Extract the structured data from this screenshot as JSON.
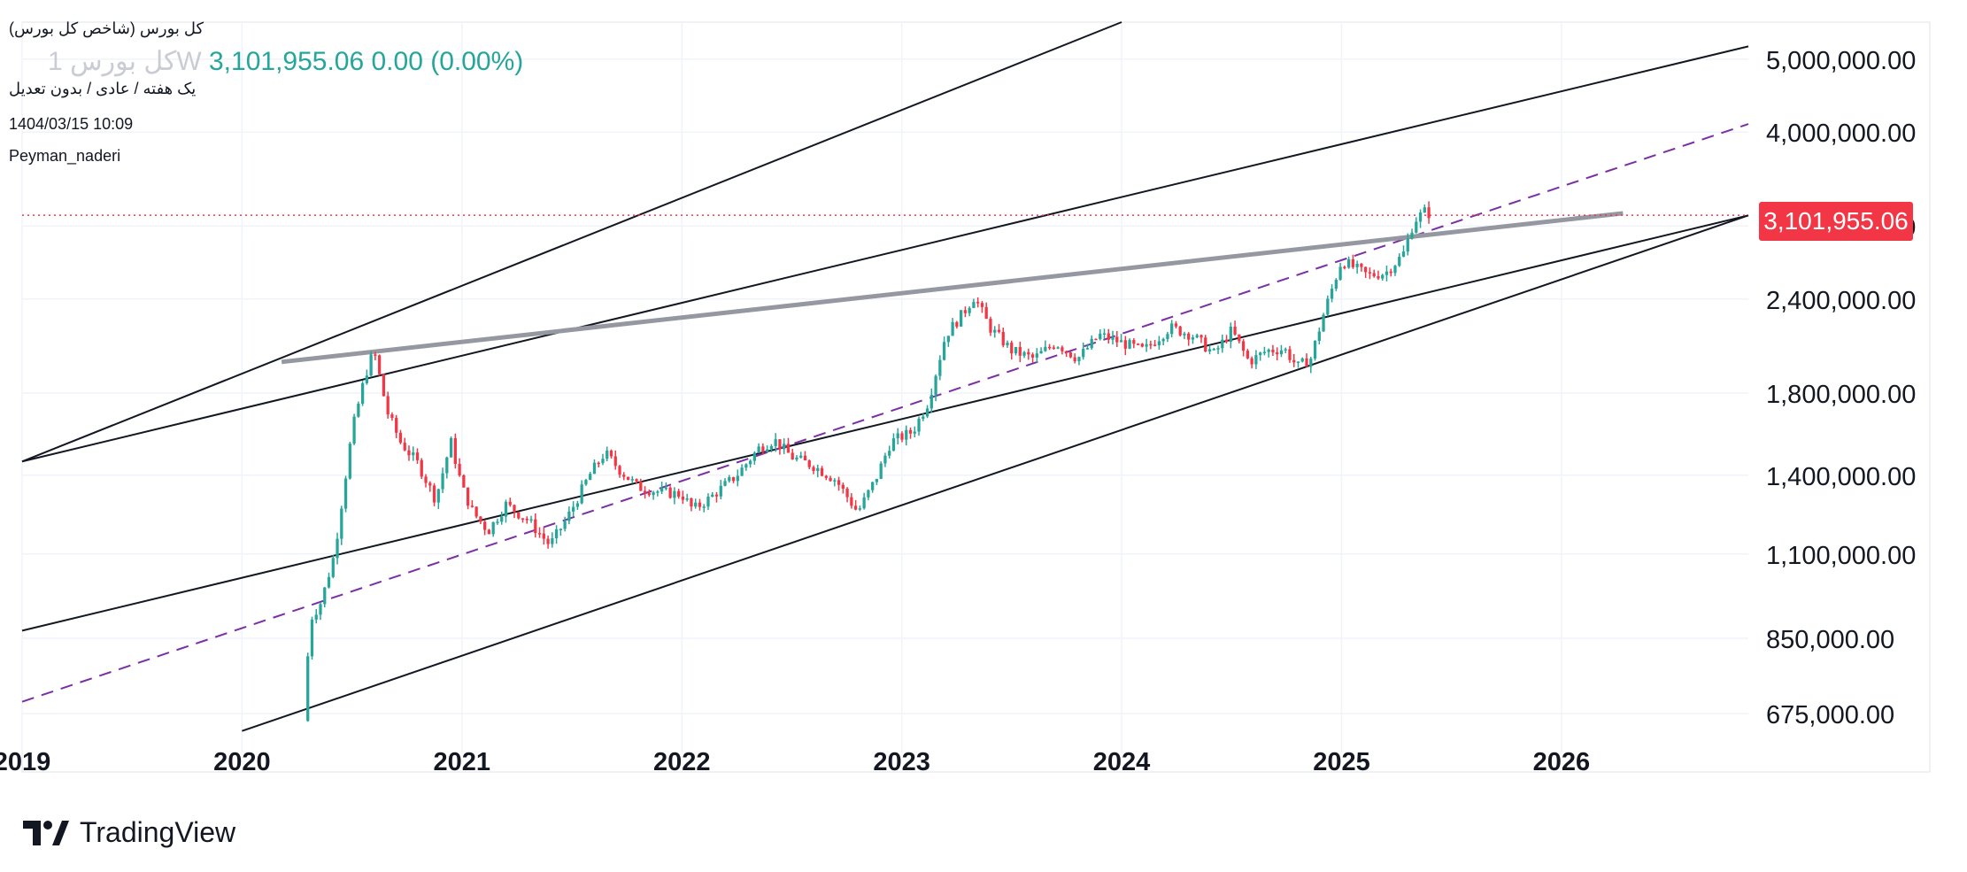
{
  "legend": {
    "symbol_title": "کل بورس (شاخص کل بورس)",
    "price_line_ghost": "کل بورس 1W",
    "price_line_value": "3,101,955.06  0.00 (0.00%)",
    "interval_desc": "یک هفته / عادی / بدون تعدیل",
    "datetime": "1404/03/15 10:09",
    "author": "Peyman_naderi"
  },
  "last_price_label": "3,101,955.06",
  "brand": {
    "name": "TradingView"
  },
  "colors": {
    "up": "#26a69a",
    "down": "#f23645",
    "grid": "#f0f3fa",
    "channel": "#131722",
    "median": "#7b2fa5",
    "trend": "#9598a1"
  },
  "chart_data": {
    "type": "candlestick",
    "scale": "log",
    "last_price": 3101955.06,
    "ylim": [
      650000,
      5600000
    ],
    "y_ticks": [
      {
        "value": 675000,
        "label": "675,000.00"
      },
      {
        "value": 850000,
        "label": "850,000.00"
      },
      {
        "value": 1100000,
        "label": "1,100,000.00"
      },
      {
        "value": 1400000,
        "label": "1,400,000.00"
      },
      {
        "value": 1800000,
        "label": "1,800,000.00"
      },
      {
        "value": 2400000,
        "label": "2,400,000.00"
      },
      {
        "value": 3000000,
        "label": "3,000,000.00"
      },
      {
        "value": 4000000,
        "label": "4,000,000.00"
      },
      {
        "value": 5000000,
        "label": "5,000,000.00"
      }
    ],
    "x_ticks": [
      "2019",
      "2020",
      "2021",
      "2022",
      "2023",
      "2024",
      "2025",
      "2026"
    ],
    "xlim": [
      2019.0,
      2026.85
    ],
    "close_path": [
      [
        2020.28,
        660000
      ],
      [
        2020.31,
        900000
      ],
      [
        2020.36,
        950000
      ],
      [
        2020.42,
        1100000
      ],
      [
        2020.5,
        1600000
      ],
      [
        2020.56,
        1900000
      ],
      [
        2020.6,
        2050000
      ],
      [
        2020.66,
        1700000
      ],
      [
        2020.72,
        1550000
      ],
      [
        2020.8,
        1450000
      ],
      [
        2020.88,
        1300000
      ],
      [
        2020.95,
        1550000
      ],
      [
        2021.0,
        1350000
      ],
      [
        2021.05,
        1250000
      ],
      [
        2021.12,
        1180000
      ],
      [
        2021.2,
        1280000
      ],
      [
        2021.3,
        1220000
      ],
      [
        2021.4,
        1130000
      ],
      [
        2021.48,
        1230000
      ],
      [
        2021.58,
        1400000
      ],
      [
        2021.65,
        1500000
      ],
      [
        2021.72,
        1420000
      ],
      [
        2021.8,
        1350000
      ],
      [
        2021.9,
        1330000
      ],
      [
        2022.0,
        1320000
      ],
      [
        2022.05,
        1260000
      ],
      [
        2022.12,
        1300000
      ],
      [
        2022.25,
        1400000
      ],
      [
        2022.35,
        1520000
      ],
      [
        2022.42,
        1560000
      ],
      [
        2022.5,
        1480000
      ],
      [
        2022.6,
        1440000
      ],
      [
        2022.7,
        1380000
      ],
      [
        2022.8,
        1250000
      ],
      [
        2022.88,
        1380000
      ],
      [
        2022.95,
        1550000
      ],
      [
        2023.05,
        1600000
      ],
      [
        2023.12,
        1750000
      ],
      [
        2023.2,
        2150000
      ],
      [
        2023.28,
        2300000
      ],
      [
        2023.33,
        2420000
      ],
      [
        2023.4,
        2200000
      ],
      [
        2023.5,
        2050000
      ],
      [
        2023.6,
        2000000
      ],
      [
        2023.7,
        2100000
      ],
      [
        2023.8,
        2000000
      ],
      [
        2023.9,
        2150000
      ],
      [
        2024.0,
        2100000
      ],
      [
        2024.1,
        2050000
      ],
      [
        2024.22,
        2200000
      ],
      [
        2024.32,
        2150000
      ],
      [
        2024.42,
        2030000
      ],
      [
        2024.5,
        2180000
      ],
      [
        2024.58,
        1980000
      ],
      [
        2024.66,
        2050000
      ],
      [
        2024.74,
        2060000
      ],
      [
        2024.8,
        1950000
      ],
      [
        2024.86,
        2000000
      ],
      [
        2024.92,
        2300000
      ],
      [
        2025.0,
        2700000
      ],
      [
        2025.05,
        2650000
      ],
      [
        2025.12,
        2580000
      ],
      [
        2025.2,
        2600000
      ],
      [
        2025.28,
        2750000
      ],
      [
        2025.33,
        3050000
      ],
      [
        2025.38,
        3140000
      ],
      [
        2025.41,
        3101955.06
      ]
    ],
    "drawings": [
      {
        "kind": "channel_upper",
        "from": [
          2019.0,
          1460000
        ],
        "to": [
          2026.85,
          5200000
        ],
        "label": ""
      },
      {
        "kind": "channel_middle",
        "from": [
          2019.0,
          870000
        ],
        "to": [
          2026.85,
          3100000
        ],
        "label": ""
      },
      {
        "kind": "channel_lower",
        "from": [
          2020.0,
          640000
        ],
        "to": [
          2026.85,
          3100000
        ],
        "label": ""
      },
      {
        "kind": "channel_top",
        "from": [
          2019.0,
          1460000
        ],
        "to": [
          2024.0,
          5600000
        ],
        "label": ""
      },
      {
        "kind": "median_dashed",
        "from": [
          2019.0,
          700000
        ],
        "to": [
          2026.85,
          4100000
        ],
        "label": ""
      },
      {
        "kind": "trendline",
        "from": [
          2020.18,
          1980000
        ],
        "to": [
          2026.28,
          3120000
        ],
        "label": ""
      },
      {
        "kind": "price_line",
        "value": 3101955.06
      }
    ]
  }
}
